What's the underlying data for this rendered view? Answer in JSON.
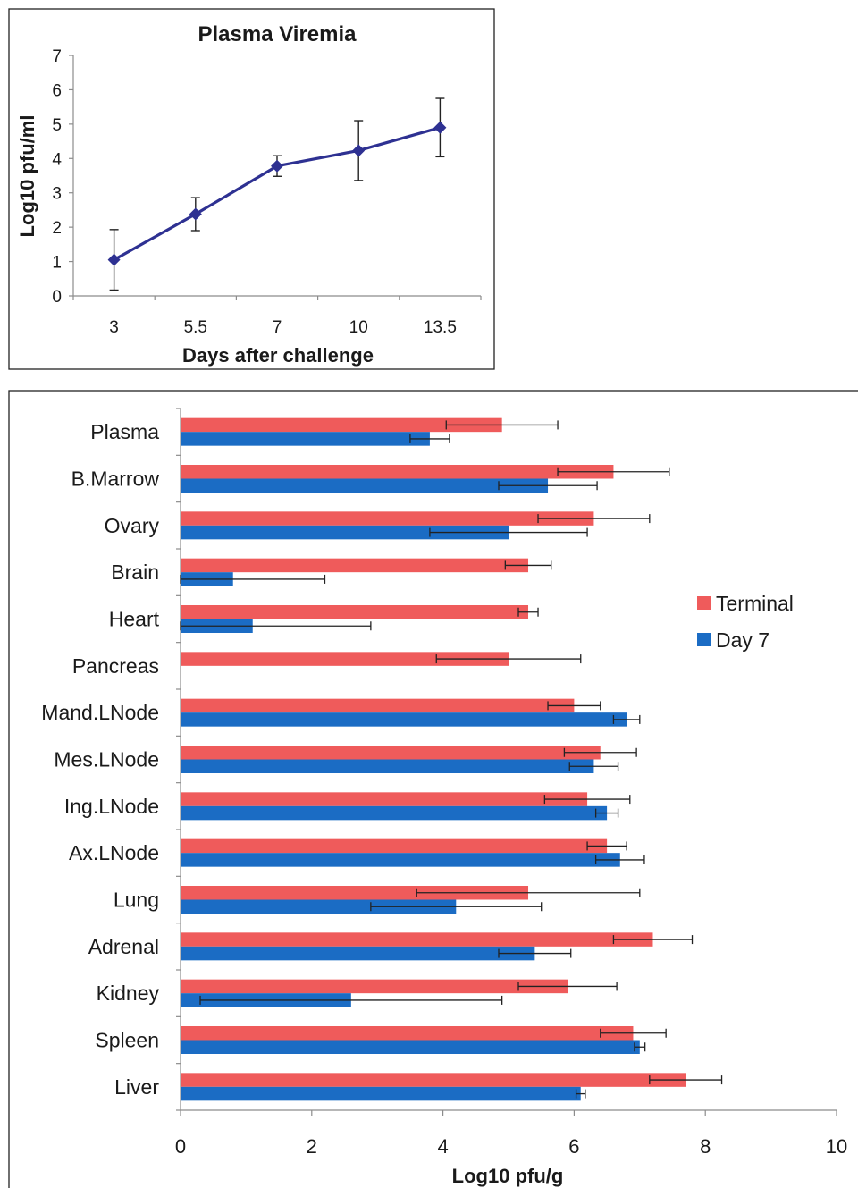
{
  "chart_data": [
    {
      "type": "line",
      "title": "Plasma Viremia",
      "xlabel": "Days after challenge",
      "ylabel": "Log10 pfu/ml",
      "categories": [
        "3",
        "5.5",
        "7",
        "10",
        "13.5"
      ],
      "ylim": [
        0,
        7
      ],
      "yticks": [
        0,
        1,
        2,
        3,
        4,
        5,
        6,
        7
      ],
      "grid": false,
      "legend": "none",
      "series": [
        {
          "values": [
            1.05,
            2.38,
            3.78,
            4.23,
            4.9
          ],
          "error": [
            0.88,
            0.48,
            0.3,
            0.87,
            0.85
          ],
          "color": "#2e3192"
        }
      ]
    },
    {
      "type": "bar",
      "orientation": "horizontal",
      "xlabel": "Log10 pfu/g",
      "categories": [
        "Plasma",
        "B.Marrow",
        "Ovary",
        "Brain",
        "Heart",
        "Pancreas",
        "Mand.LNode",
        "Mes.LNode",
        "Ing.LNode",
        "Ax.LNode",
        "Lung",
        "Adrenal",
        "Kidney",
        "Spleen",
        "Liver"
      ],
      "xlim": [
        0,
        10
      ],
      "xticks": [
        0,
        2,
        4,
        6,
        8,
        10
      ],
      "grid": false,
      "legend": "right",
      "series": [
        {
          "name": "Terminal",
          "color": "#ef5b5b",
          "values": [
            4.9,
            6.6,
            6.3,
            5.3,
            5.3,
            5.0,
            6.0,
            6.4,
            6.2,
            6.5,
            5.3,
            7.2,
            5.9,
            6.9,
            7.7
          ],
          "error": [
            0.85,
            0.85,
            0.85,
            0.35,
            0.15,
            1.1,
            0.4,
            0.55,
            0.65,
            0.3,
            1.7,
            0.6,
            0.75,
            0.5,
            0.55
          ]
        },
        {
          "name": "Day 7",
          "color": "#1b6cc4",
          "values": [
            3.8,
            5.6,
            5.0,
            0.8,
            1.1,
            null,
            6.8,
            6.3,
            6.5,
            6.7,
            4.2,
            5.4,
            2.6,
            7.0,
            6.1
          ],
          "error": [
            0.3,
            0.75,
            1.2,
            1.4,
            1.8,
            null,
            0.2,
            0.37,
            0.17,
            0.37,
            1.3,
            0.55,
            2.3,
            0.08,
            0.07
          ]
        }
      ]
    }
  ]
}
